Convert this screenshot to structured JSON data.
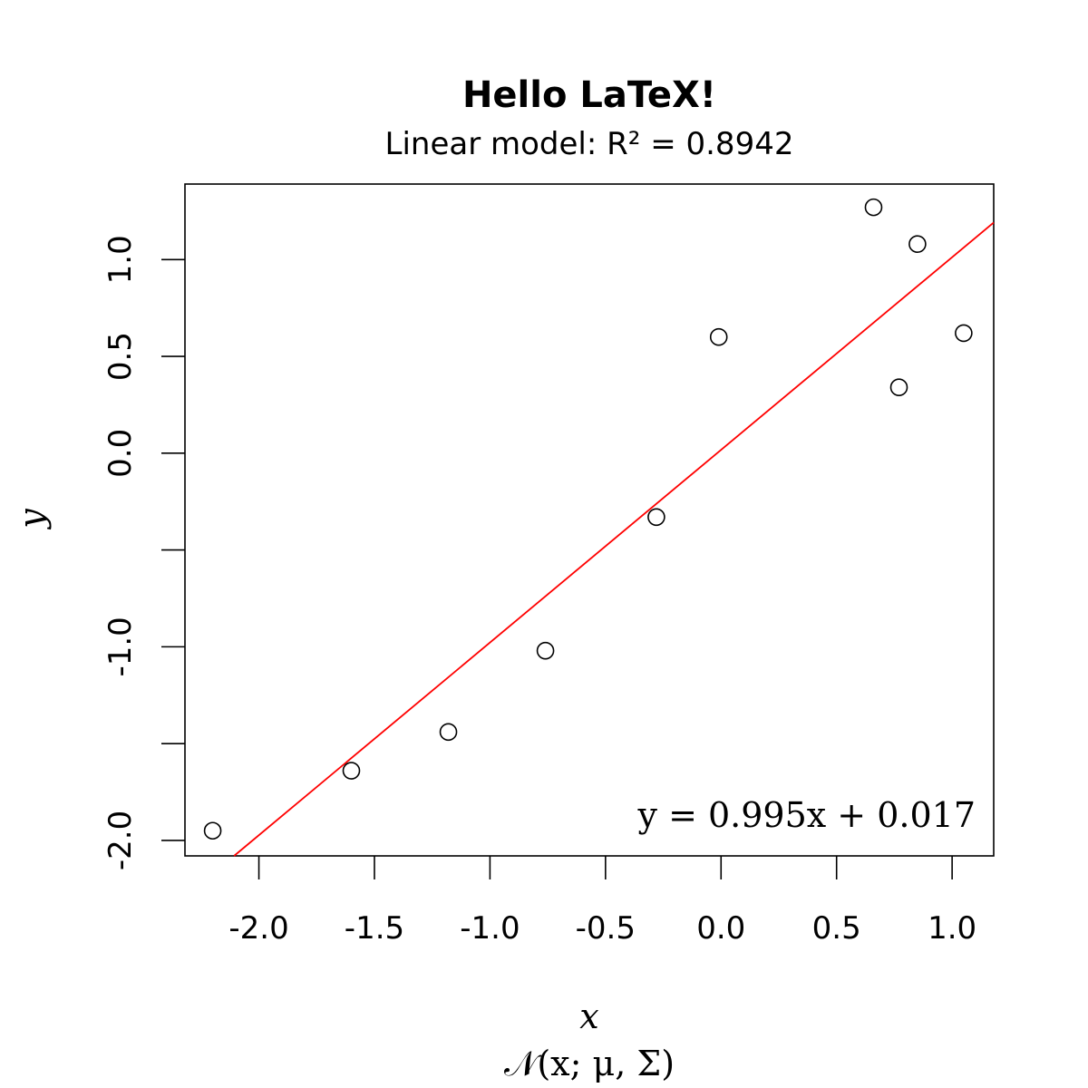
{
  "chart_data": {
    "type": "scatter",
    "title": "Hello LaTeX!",
    "subtitle": "Linear model: R² = 0.8942",
    "xlabel": "x",
    "xlabel_sub": "𝒩(x; μ, Σ)",
    "ylabel": "y",
    "annotation": "y = 0.995x + 0.017",
    "xlim": [
      -2.32,
      1.18
    ],
    "ylim": [
      -2.08,
      1.39
    ],
    "x_ticks": [
      -2.0,
      -1.5,
      -1.0,
      -0.5,
      0.0,
      0.5,
      1.0
    ],
    "x_tick_labels": [
      "-2.0",
      "-1.5",
      "-1.0",
      "-0.5",
      "0.0",
      "0.5",
      "1.0"
    ],
    "y_ticks": [
      -2.0,
      -1.5,
      -1.0,
      -0.5,
      0.0,
      0.5,
      1.0
    ],
    "y_tick_labels": [
      "-2.0",
      "",
      "-1.0",
      "",
      "0.0",
      "0.5",
      "1.0"
    ],
    "points": [
      {
        "x": -2.2,
        "y": -1.95
      },
      {
        "x": -1.6,
        "y": -1.64
      },
      {
        "x": -1.18,
        "y": -1.44
      },
      {
        "x": -0.76,
        "y": -1.02
      },
      {
        "x": -0.28,
        "y": -0.33
      },
      {
        "x": -0.01,
        "y": 0.6
      },
      {
        "x": 0.66,
        "y": 1.27
      },
      {
        "x": 0.77,
        "y": 0.34
      },
      {
        "x": 0.85,
        "y": 1.08
      },
      {
        "x": 1.05,
        "y": 0.62
      }
    ],
    "fit": {
      "slope": 0.995,
      "intercept": 0.017,
      "color": "#ff0000"
    },
    "point_color": "#000000",
    "grid": false,
    "legend": "none"
  }
}
